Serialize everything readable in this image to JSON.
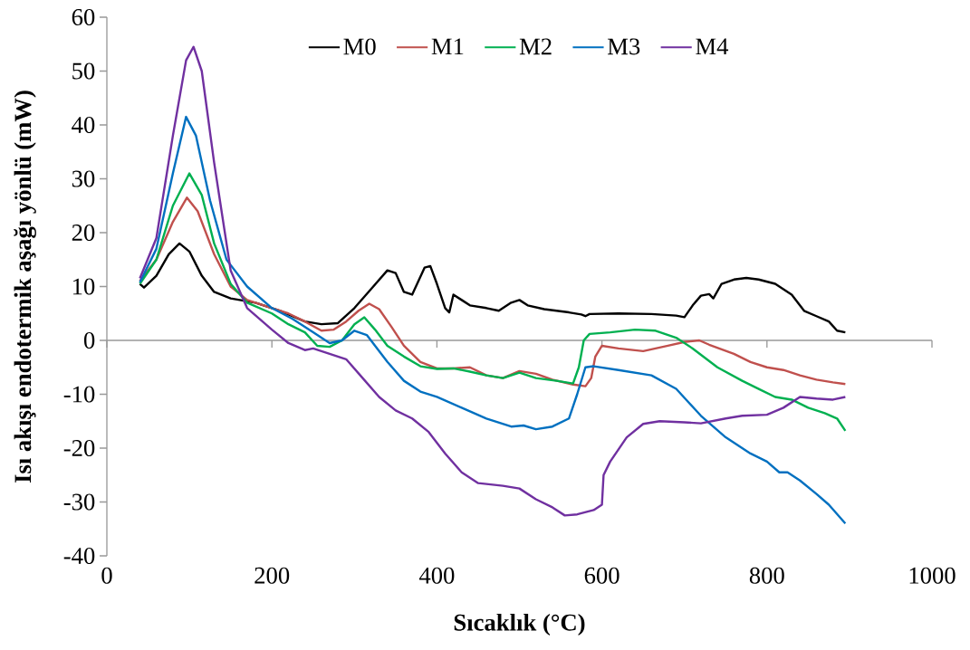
{
  "chart_data": {
    "type": "line",
    "xlabel": "Sıcaklık (°C)",
    "ylabel": "Isı akışı endotermik aşağı yönlü (mW)",
    "xlim": [
      0,
      1000
    ],
    "ylim": [
      -40,
      60
    ],
    "xticks": [
      0,
      200,
      400,
      600,
      800,
      1000
    ],
    "yticks": [
      -40,
      -30,
      -20,
      -10,
      0,
      10,
      20,
      30,
      40,
      50,
      60
    ],
    "legend": "top",
    "marker": "none",
    "line_style": "solid",
    "series": [
      {
        "name": "M0",
        "color": "#000000",
        "x": [
          40,
          45,
          60,
          75,
          88,
          100,
          115,
          130,
          150,
          180,
          210,
          240,
          260,
          280,
          300,
          320,
          340,
          350,
          360,
          370,
          385,
          392,
          400,
          410,
          415,
          420,
          430,
          440,
          460,
          475,
          490,
          500,
          510,
          530,
          560,
          575,
          580,
          585,
          620,
          660,
          690,
          700,
          710,
          720,
          730,
          735,
          745,
          760,
          775,
          790,
          810,
          830,
          845,
          860,
          875,
          885,
          895
        ],
        "values": [
          10.5,
          9.8,
          12,
          16,
          18,
          16.5,
          12,
          9,
          7.8,
          7,
          5.5,
          3.5,
          3,
          3.2,
          6,
          9.5,
          13,
          12.5,
          9,
          8.5,
          13.5,
          13.8,
          10.5,
          6,
          5.2,
          8.5,
          7.5,
          6.5,
          6,
          5.5,
          7,
          7.5,
          6.5,
          5.8,
          5.2,
          4.8,
          4.5,
          4.9,
          5,
          4.9,
          4.6,
          4.3,
          6.5,
          8.3,
          8.6,
          7.8,
          10.5,
          11.3,
          11.6,
          11.3,
          10.5,
          8.5,
          5.5,
          4.5,
          3.5,
          1.8,
          1.5
        ]
      },
      {
        "name": "M1",
        "color": "#c0504d",
        "x": [
          40,
          60,
          80,
          97,
          110,
          130,
          150,
          170,
          200,
          220,
          240,
          260,
          275,
          290,
          305,
          318,
          330,
          345,
          360,
          380,
          400,
          420,
          440,
          460,
          480,
          500,
          520,
          540,
          565,
          580,
          587,
          592,
          600,
          620,
          650,
          680,
          700,
          718,
          730,
          760,
          780,
          800,
          820,
          840,
          860,
          880,
          895
        ],
        "values": [
          11,
          15,
          22,
          26.5,
          24,
          16,
          10,
          7.5,
          6,
          5,
          3.5,
          1.8,
          2,
          3.5,
          5.5,
          6.8,
          5.8,
          2.5,
          -1,
          -4,
          -5.2,
          -5.2,
          -5,
          -6.5,
          -7,
          -5.7,
          -6.2,
          -7.3,
          -8.2,
          -8.5,
          -7,
          -3,
          -1,
          -1.5,
          -2,
          -1,
          -0.3,
          0,
          -0.8,
          -2.5,
          -4,
          -5,
          -5.5,
          -6.5,
          -7.3,
          -7.8,
          -8.1
        ]
      },
      {
        "name": "M2",
        "color": "#00b050",
        "x": [
          40,
          60,
          80,
          100,
          115,
          130,
          150,
          170,
          200,
          220,
          240,
          255,
          270,
          285,
          300,
          312,
          325,
          340,
          360,
          380,
          400,
          420,
          440,
          460,
          480,
          500,
          520,
          545,
          565,
          572,
          578,
          585,
          610,
          640,
          665,
          690,
          710,
          740,
          770,
          790,
          810,
          830,
          850,
          870,
          885,
          895
        ],
        "values": [
          10.5,
          15,
          25,
          31,
          27,
          18,
          10.5,
          7,
          5,
          3,
          1.5,
          -1,
          -1.2,
          0,
          3,
          4.3,
          2,
          -1,
          -3,
          -4.8,
          -5.3,
          -5.2,
          -5.8,
          -6.5,
          -7,
          -6,
          -7,
          -7.5,
          -8,
          -5,
          0,
          1.2,
          1.5,
          2,
          1.8,
          0.5,
          -1.5,
          -5,
          -7.5,
          -9,
          -10.5,
          -11,
          -12.5,
          -13.5,
          -14.5,
          -16.8
        ]
      },
      {
        "name": "M3",
        "color": "#0070c0",
        "x": [
          40,
          60,
          80,
          96,
          108,
          125,
          145,
          170,
          200,
          225,
          250,
          270,
          285,
          300,
          315,
          340,
          360,
          380,
          400,
          430,
          460,
          490,
          505,
          520,
          540,
          560,
          570,
          580,
          590,
          620,
          660,
          690,
          720,
          750,
          780,
          800,
          815,
          825,
          840,
          860,
          875,
          895
        ],
        "values": [
          10.8,
          17,
          31,
          41.5,
          38,
          26,
          15,
          10,
          6,
          4,
          1.5,
          -0.5,
          0,
          1.8,
          1,
          -4,
          -7.5,
          -9.5,
          -10.5,
          -12.5,
          -14.5,
          -16,
          -15.8,
          -16.5,
          -16,
          -14.5,
          -10,
          -5,
          -4.8,
          -5.5,
          -6.5,
          -9,
          -14,
          -18,
          -21,
          -22.5,
          -24.5,
          -24.5,
          -26,
          -28.5,
          -30.5,
          -34
        ]
      },
      {
        "name": "M4",
        "color": "#7030a0",
        "x": [
          40,
          60,
          80,
          96,
          105,
          115,
          130,
          150,
          170,
          200,
          220,
          240,
          250,
          270,
          290,
          310,
          330,
          350,
          370,
          390,
          410,
          430,
          450,
          480,
          500,
          520,
          540,
          555,
          570,
          590,
          600,
          602,
          610,
          630,
          650,
          670,
          700,
          720,
          750,
          770,
          800,
          820,
          840,
          860,
          880,
          895
        ],
        "values": [
          11.5,
          19,
          38,
          52,
          54.5,
          50,
          33,
          13,
          6,
          2,
          -0.5,
          -1.8,
          -1.5,
          -2.5,
          -3.5,
          -7,
          -10.5,
          -13,
          -14.5,
          -17,
          -21,
          -24.5,
          -26.5,
          -27,
          -27.5,
          -29.5,
          -31,
          -32.5,
          -32.3,
          -31.5,
          -30.5,
          -25,
          -22.5,
          -18,
          -15.5,
          -15,
          -15.2,
          -15.4,
          -14.5,
          -14,
          -13.8,
          -12.5,
          -10.5,
          -10.8,
          -11,
          -10.5
        ]
      }
    ]
  }
}
